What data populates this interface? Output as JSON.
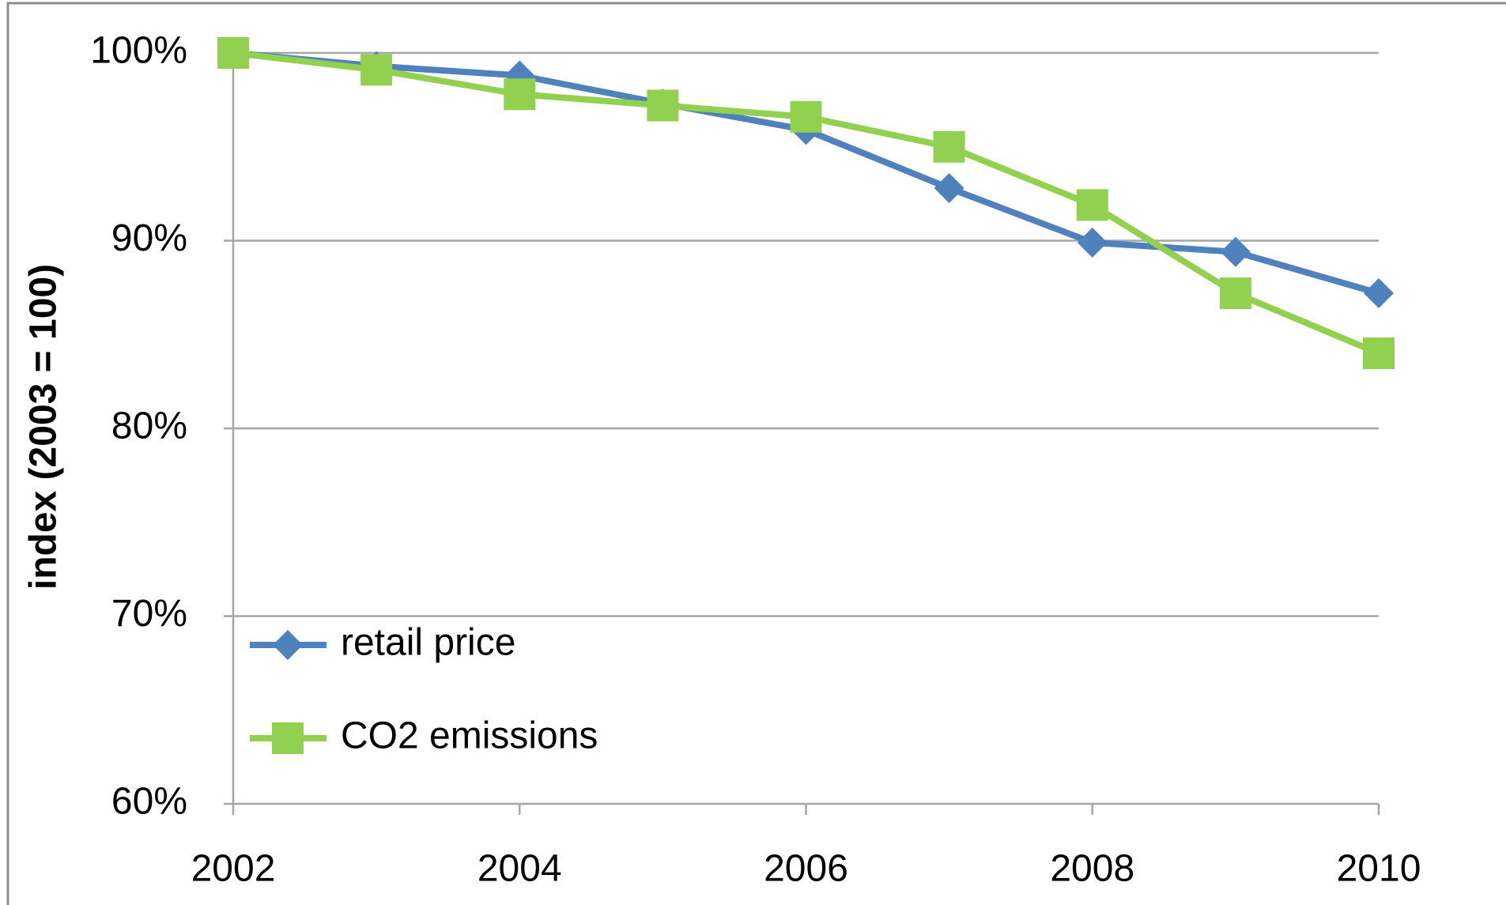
{
  "chart_data": {
    "type": "line",
    "y_label": "index (2003 = 100)",
    "x": [
      2002,
      2003,
      2004,
      2005,
      2006,
      2007,
      2008,
      2009,
      2010
    ],
    "series": [
      {
        "name": "retail price",
        "color": "#4f81bd",
        "marker": "diamond",
        "values": [
          100,
          99.3,
          98.8,
          97.3,
          95.9,
          92.8,
          89.9,
          89.4,
          87.2
        ]
      },
      {
        "name": "CO2 emissions",
        "color": "#92d050",
        "marker": "square",
        "values": [
          100,
          99.1,
          97.8,
          97.2,
          96.6,
          95.0,
          91.9,
          87.2,
          84.0
        ]
      }
    ],
    "xlim": [
      2002,
      2010
    ],
    "xticks": [
      2002,
      2004,
      2006,
      2008,
      2010
    ],
    "ylim": [
      60,
      100
    ],
    "yticks": [
      {
        "value": 60,
        "label": "60%"
      },
      {
        "value": 70,
        "label": "70%"
      },
      {
        "value": 80,
        "label": "80%"
      },
      {
        "value": 90,
        "label": "90%"
      },
      {
        "value": 100,
        "label": "100%"
      }
    ],
    "grid": true,
    "legend": "lower left"
  }
}
